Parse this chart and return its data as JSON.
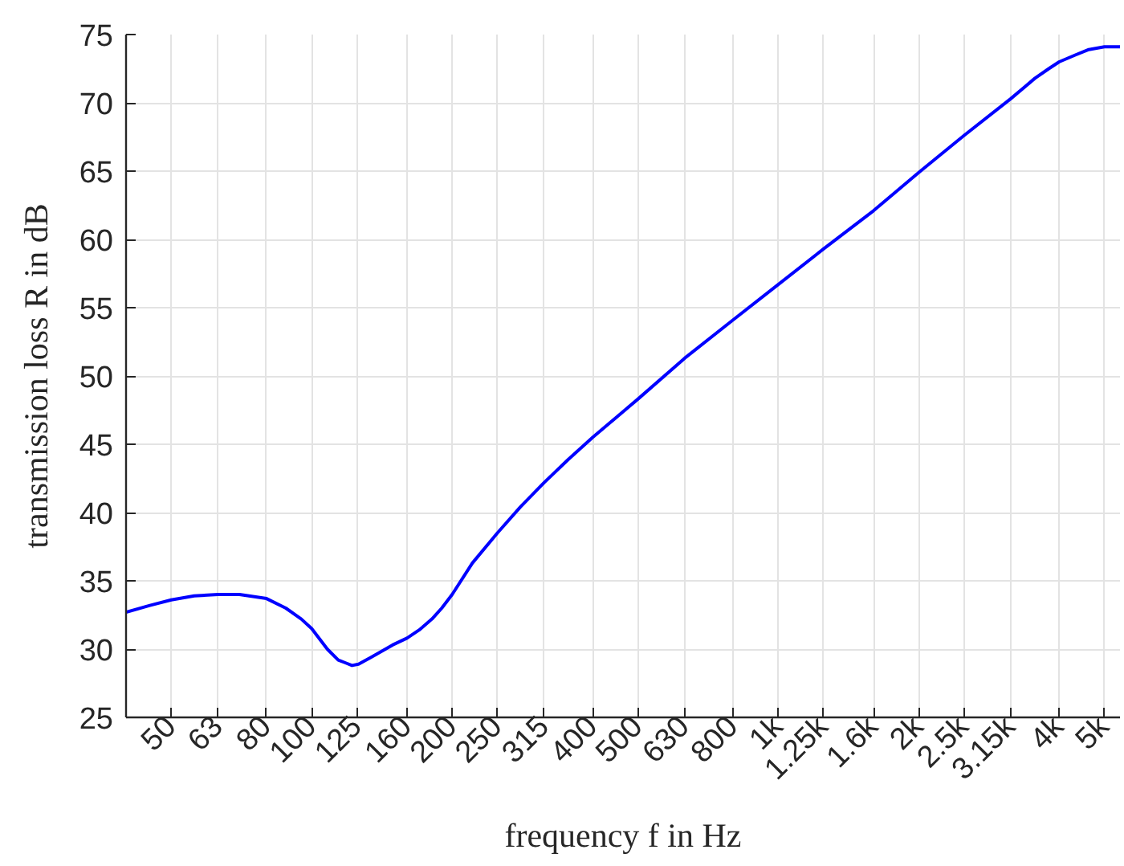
{
  "chart_data": {
    "type": "line",
    "xlabel": "frequency f in Hz",
    "ylabel": "transmission loss R in dB",
    "x": [
      40,
      45,
      50,
      56,
      63,
      70,
      80,
      88,
      95,
      100,
      108,
      114,
      118,
      122,
      126,
      134,
      149,
      160,
      170,
      181,
      190,
      200,
      221,
      250,
      280,
      315,
      355,
      400,
      500,
      630,
      800,
      1000,
      1250,
      1600,
      2000,
      2500,
      3150,
      3550,
      3800,
      4000,
      4330,
      4630,
      5000,
      5400
    ],
    "series": [
      {
        "color": "#0000ff",
        "values": [
          32.7,
          33.2,
          33.6,
          33.9,
          34.0,
          34.0,
          33.7,
          33.0,
          32.2,
          31.5,
          30.0,
          29.2,
          29.0,
          28.8,
          28.9,
          29.4,
          30.3,
          30.8,
          31.4,
          32.2,
          33.0,
          34.0,
          36.3,
          38.5,
          40.4,
          42.2,
          43.9,
          45.5,
          48.3,
          51.3,
          54.1,
          56.7,
          59.3,
          62.1,
          64.9,
          67.6,
          70.3,
          71.8,
          72.5,
          73.0,
          73.5,
          73.9,
          74.1,
          74.1
        ]
      }
    ],
    "xlim": [
      40,
      5400
    ],
    "ylim": [
      25,
      75
    ],
    "xticks": [
      50,
      63,
      80,
      100,
      125,
      160,
      200,
      250,
      315,
      400,
      500,
      630,
      800,
      {
        "value": 1000,
        "label": "1k"
      },
      {
        "value": 1250,
        "label": "1.25k"
      },
      {
        "value": 1600,
        "label": "1.6k"
      },
      {
        "value": 2000,
        "label": "2k"
      },
      {
        "value": 2500,
        "label": "2.5k"
      },
      {
        "value": 3150,
        "label": "3.15k"
      },
      {
        "value": 4000,
        "label": "4k"
      },
      {
        "value": 5000,
        "label": "5k"
      }
    ],
    "yticks": [
      25,
      30,
      35,
      40,
      45,
      50,
      55,
      60,
      65,
      70,
      75
    ],
    "log": "x",
    "grid": true,
    "line_style": "solid"
  }
}
